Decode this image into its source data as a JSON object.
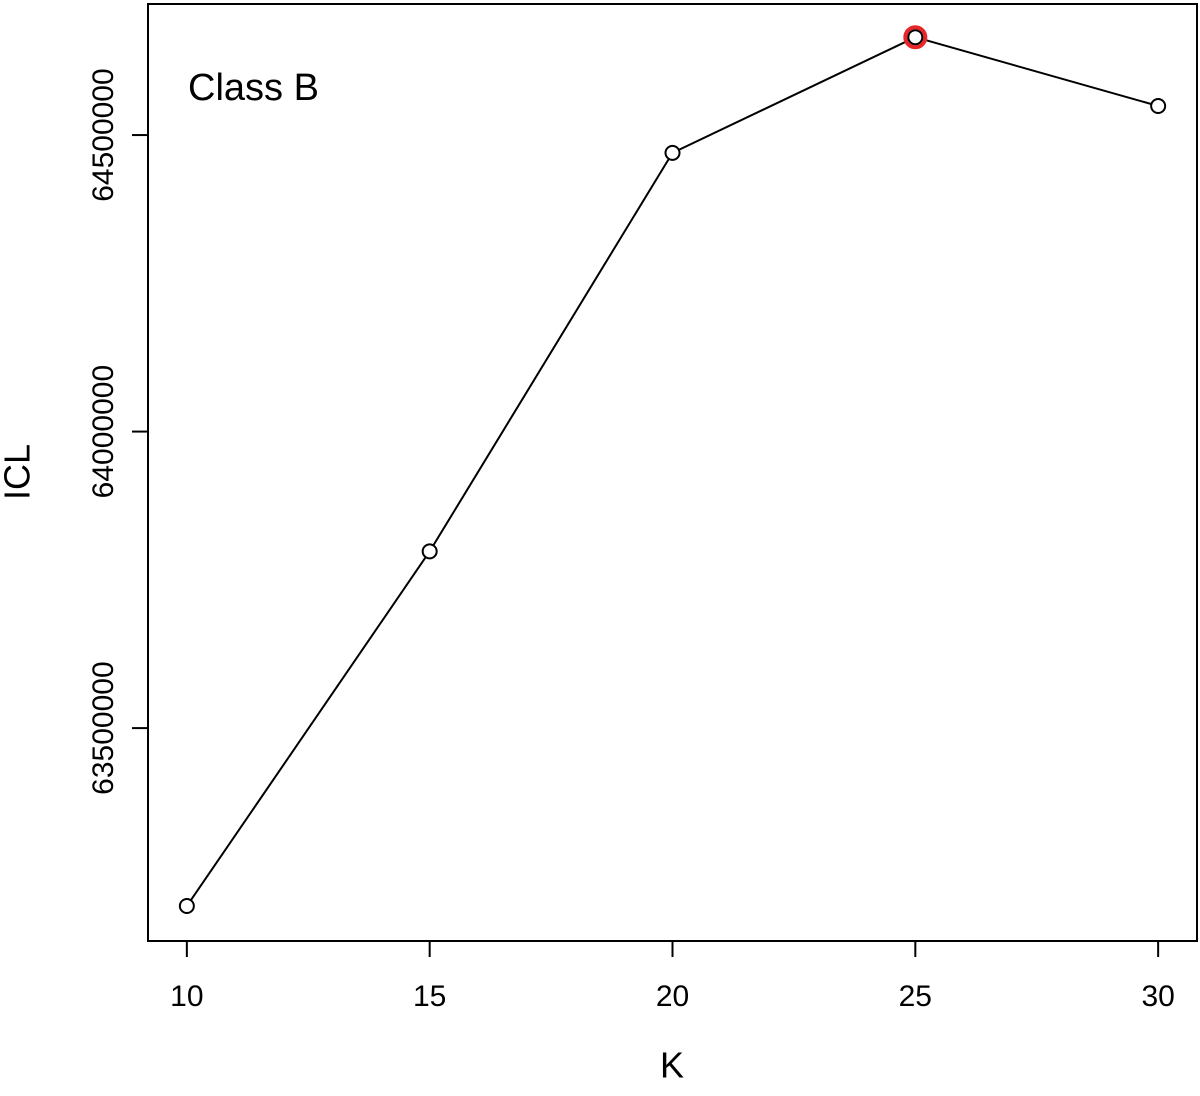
{
  "chart_data": {
    "type": "line",
    "title": "Class B",
    "x_label": "K",
    "y_label": "ICL",
    "x": [
      10,
      15,
      20,
      25,
      30
    ],
    "series": [
      {
        "name": "ICL",
        "color": "#000000",
        "values": [
          63200000,
          63798000,
          64470000,
          64665000,
          64549000
        ]
      }
    ],
    "highlight": {
      "x": 25,
      "color": "#e8262a"
    },
    "xlim": [
      9.2,
      30.8
    ],
    "xticks": [
      10,
      15,
      20,
      25,
      30
    ],
    "ylim": [
      63141000,
      64721000
    ],
    "yticks": [
      63500000,
      64000000,
      64500000
    ],
    "grid": false
  }
}
